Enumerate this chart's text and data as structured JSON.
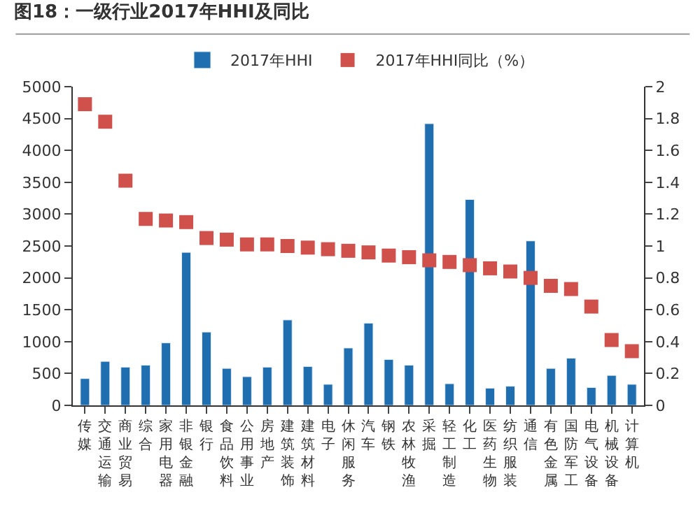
{
  "chart_data": {
    "type": "bar",
    "title": "图18：一级行业2017年HHI及同比",
    "categories": [
      "传媒",
      "交通运输",
      "商业贸易",
      "综合",
      "家用电器",
      "非银金融",
      "银行",
      "食品饮料",
      "公用事业",
      "房地产",
      "建筑装饰",
      "建筑材料",
      "电子",
      "休闲服务",
      "汽车",
      "钢铁",
      "农林牧渔",
      "采掘",
      "轻工制造",
      "化工",
      "医药生物",
      "纺织服装",
      "通信",
      "有色金属",
      "国防军工",
      "电气设备",
      "机械设备",
      "计算机"
    ],
    "series": [
      {
        "name": "2017年HHI",
        "color": "#1f6fb0",
        "values": [
          420,
          690,
          600,
          630,
          980,
          2400,
          1150,
          580,
          450,
          600,
          1340,
          610,
          330,
          900,
          1290,
          720,
          630,
          4420,
          340,
          3230,
          270,
          300,
          2580,
          580,
          740,
          280,
          470,
          330
        ]
      },
      {
        "name": "2017年HHI同比（%）",
        "type": "scatter",
        "axis": "y2",
        "color": "#d0504c",
        "values": [
          1.89,
          1.78,
          1.41,
          1.17,
          1.16,
          1.15,
          1.05,
          1.04,
          1.01,
          1.01,
          1.0,
          0.99,
          0.98,
          0.97,
          0.96,
          0.94,
          0.93,
          0.91,
          0.9,
          0.88,
          0.86,
          0.84,
          0.8,
          0.75,
          0.73,
          0.62,
          0.41,
          0.34
        ]
      }
    ],
    "marker": "square",
    "ylim": [
      0,
      5000
    ],
    "yticks": [
      0,
      500,
      1000,
      1500,
      2000,
      2500,
      3000,
      3500,
      4000,
      4500,
      5000
    ],
    "y2lim": [
      0,
      2
    ],
    "y2ticks": [
      0,
      0.2,
      0.4,
      0.6,
      0.8,
      1,
      1.2,
      1.4,
      1.6,
      1.8,
      2
    ],
    "legend": "top",
    "grid": false
  }
}
